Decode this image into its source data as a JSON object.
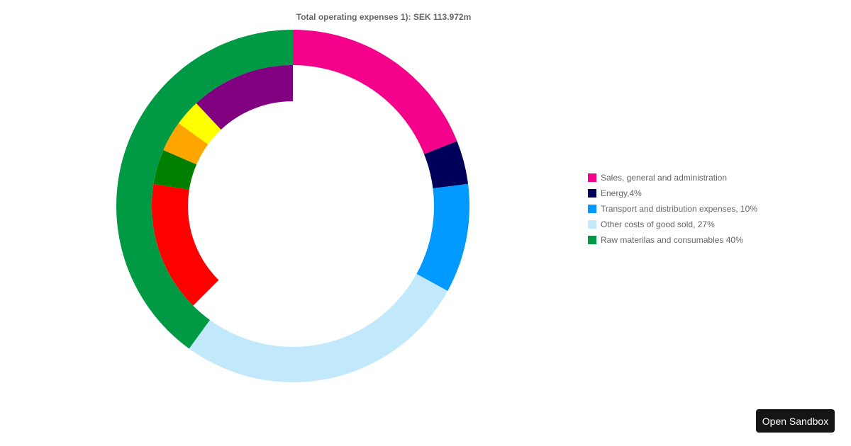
{
  "chart_data": {
    "type": "pie",
    "variant": "nested-donut",
    "title": "Total operating expenses 1): SEK 113.972m",
    "legend_position": "right",
    "outer_ring": [
      {
        "name": "Sales, general and administration",
        "value": 19,
        "color": "#f5008a"
      },
      {
        "name": "Energy,4%",
        "value": 4,
        "color": "#00005a"
      },
      {
        "name": "Transport and distribution expenses, 10%",
        "value": 10,
        "color": "#0099ff"
      },
      {
        "name": "Other costs of good sold, 27%",
        "value": 27,
        "color": "#c1e8fb"
      },
      {
        "name": "Raw materilas and consumables 40%",
        "value": 40,
        "color": "#009a44"
      }
    ],
    "inner_ring": {
      "start_value": 62.5,
      "segments": [
        {
          "value": 15,
          "color": "#ff0000"
        },
        {
          "value": 4,
          "color": "#007f00"
        },
        {
          "value": 3.5,
          "color": "#ffa500"
        },
        {
          "value": 3,
          "color": "#ffff00"
        },
        {
          "value": 12,
          "color": "#800080"
        }
      ]
    }
  },
  "legend": {
    "items": [
      {
        "label": "Sales, general and administration",
        "color": "#f5008a"
      },
      {
        "label": "Energy,4%",
        "color": "#00005a"
      },
      {
        "label": "Transport and distribution expenses, 10%",
        "color": "#0099ff"
      },
      {
        "label": "Other costs of good sold, 27%",
        "color": "#c1e8fb"
      },
      {
        "label": "Raw materilas and consumables 40%",
        "color": "#009a44"
      }
    ]
  },
  "sandbox": {
    "label": "Open Sandbox"
  }
}
